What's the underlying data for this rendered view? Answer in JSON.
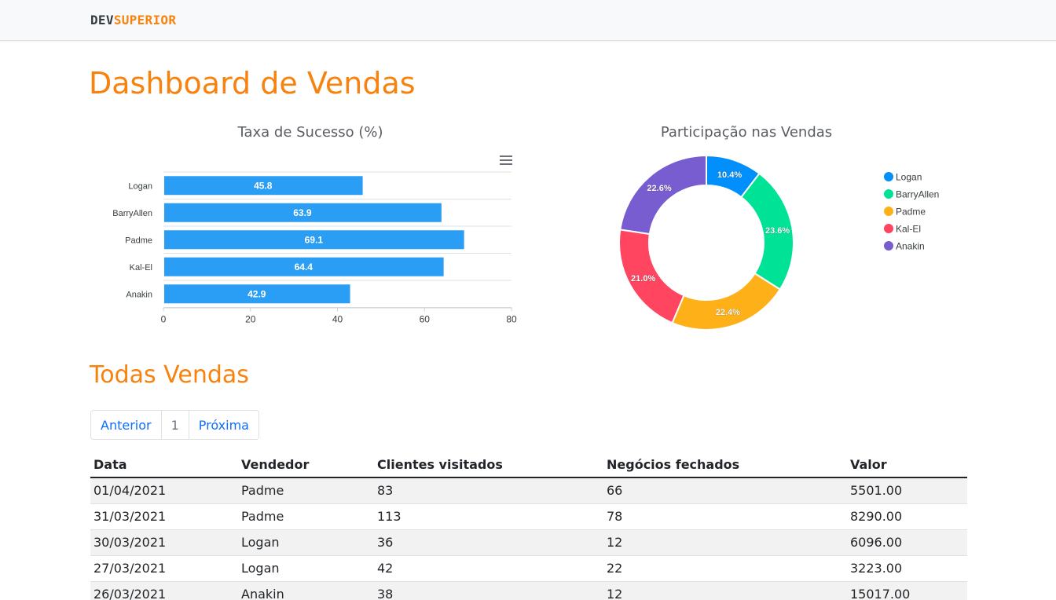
{
  "navbar": {
    "brand_prefix": "DEV",
    "brand_suffix": "SUPERIOR"
  },
  "page_title": "Dashboard de Vendas",
  "charts_meta": {
    "bar_title": "Taxa de Sucesso (%)",
    "donut_title": "Participação nas Vendas",
    "menu_icon": "hamburger-menu-icon"
  },
  "chart_data": [
    {
      "type": "bar",
      "orientation": "horizontal",
      "title": "Taxa de Sucesso (%)",
      "categories": [
        "Logan",
        "BarryAllen",
        "Padme",
        "Kal-El",
        "Anakin"
      ],
      "values": [
        45.8,
        63.9,
        69.1,
        64.4,
        42.9
      ],
      "xlim": [
        0,
        80
      ],
      "xticks": [
        0,
        20,
        40,
        60,
        80
      ],
      "color": "#2a9df4",
      "grid": true
    },
    {
      "type": "pie",
      "variant": "donut",
      "title": "Participação nas Vendas",
      "labels": [
        "Logan",
        "BarryAllen",
        "Padme",
        "Kal-El",
        "Anakin"
      ],
      "values": [
        10.4,
        23.6,
        22.4,
        21.0,
        22.6
      ],
      "value_labels": [
        "10.4%",
        "23.6%",
        "22.4%",
        "21.0%",
        "22.6%"
      ],
      "colors": [
        "#008ffb",
        "#00e396",
        "#feb019",
        "#ff4560",
        "#775dd0"
      ],
      "legend": "right"
    }
  ],
  "sales_section": {
    "title": "Todas Vendas"
  },
  "pagination": {
    "prev": "Anterior",
    "current": "1",
    "next": "Próxima"
  },
  "table": {
    "headers": [
      "Data",
      "Vendedor",
      "Clientes visitados",
      "Negócios fechados",
      "Valor"
    ],
    "rows": [
      [
        "01/04/2021",
        "Padme",
        "83",
        "66",
        "5501.00"
      ],
      [
        "31/03/2021",
        "Padme",
        "113",
        "78",
        "8290.00"
      ],
      [
        "30/03/2021",
        "Logan",
        "36",
        "12",
        "6096.00"
      ],
      [
        "27/03/2021",
        "Logan",
        "42",
        "22",
        "3223.00"
      ],
      [
        "26/03/2021",
        "Anakin",
        "38",
        "12",
        "15017.00"
      ]
    ]
  }
}
